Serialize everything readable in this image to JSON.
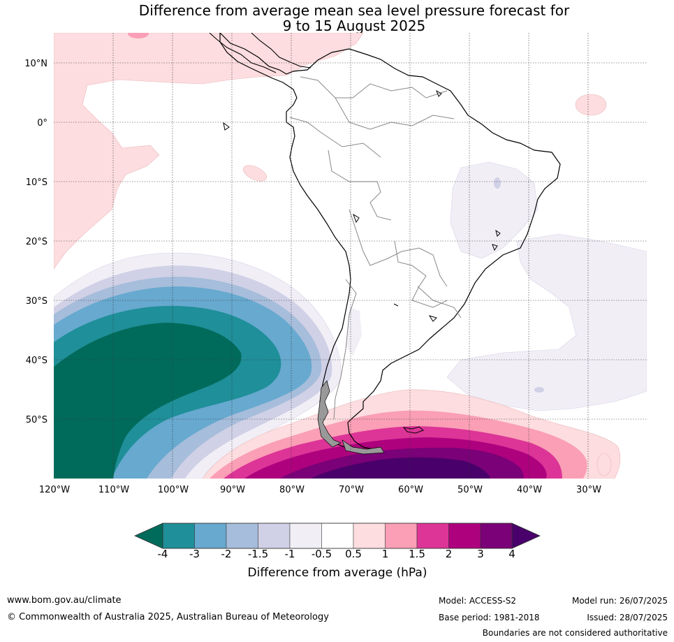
{
  "title": {
    "line1": "Difference from average mean sea level pressure forecast for",
    "line2": "9 to 15 August 2025"
  },
  "map": {
    "lat_labels": [
      "10°N",
      "0°",
      "10°S",
      "20°S",
      "30°S",
      "40°S",
      "50°S"
    ],
    "lon_labels": [
      "120°W",
      "110°W",
      "100°W",
      "90°W",
      "80°W",
      "70°W",
      "60°W",
      "50°W",
      "40°W",
      "30°W"
    ],
    "lat_range": [
      -60,
      15
    ],
    "lon_range": [
      -120,
      -20
    ],
    "gridlines": true
  },
  "colorbar": {
    "title": "Difference from average (hPa)",
    "ticks": [
      "-4",
      "-3",
      "-2",
      "-1.5",
      "-1",
      "-0.5",
      "0.5",
      "1",
      "1.5",
      "2",
      "3",
      "4"
    ],
    "colors": {
      "below_-4": "#016b5b",
      "-4_-3": "#1f8f99",
      "-3_-2": "#67a9cf",
      "-2_-1.5": "#a6bddb",
      "-1.5_-1": "#d0d1e6",
      "-1_-0.5": "#f1eef6",
      "-0.5_0.5": "#ffffff",
      "0.5_1": "#fddddf",
      "1_1.5": "#fa9fb5",
      "1.5_2": "#dd3497",
      "2_3": "#ae017e",
      "3_4": "#7a0177",
      "above_4": "#49006a"
    }
  },
  "footer": {
    "url": "www.bom.gov.au/climate",
    "copyright": "© Commonwealth of Australia 2025, Australian Bureau of Meteorology",
    "model": "Model: ACCESS-S2",
    "base_period": "Base period: 1981-2018",
    "model_run": "Model run: 26/07/2025",
    "issued": "Issued: 28/07/2025",
    "boundaries_note": "Boundaries are not considered authoritative"
  }
}
